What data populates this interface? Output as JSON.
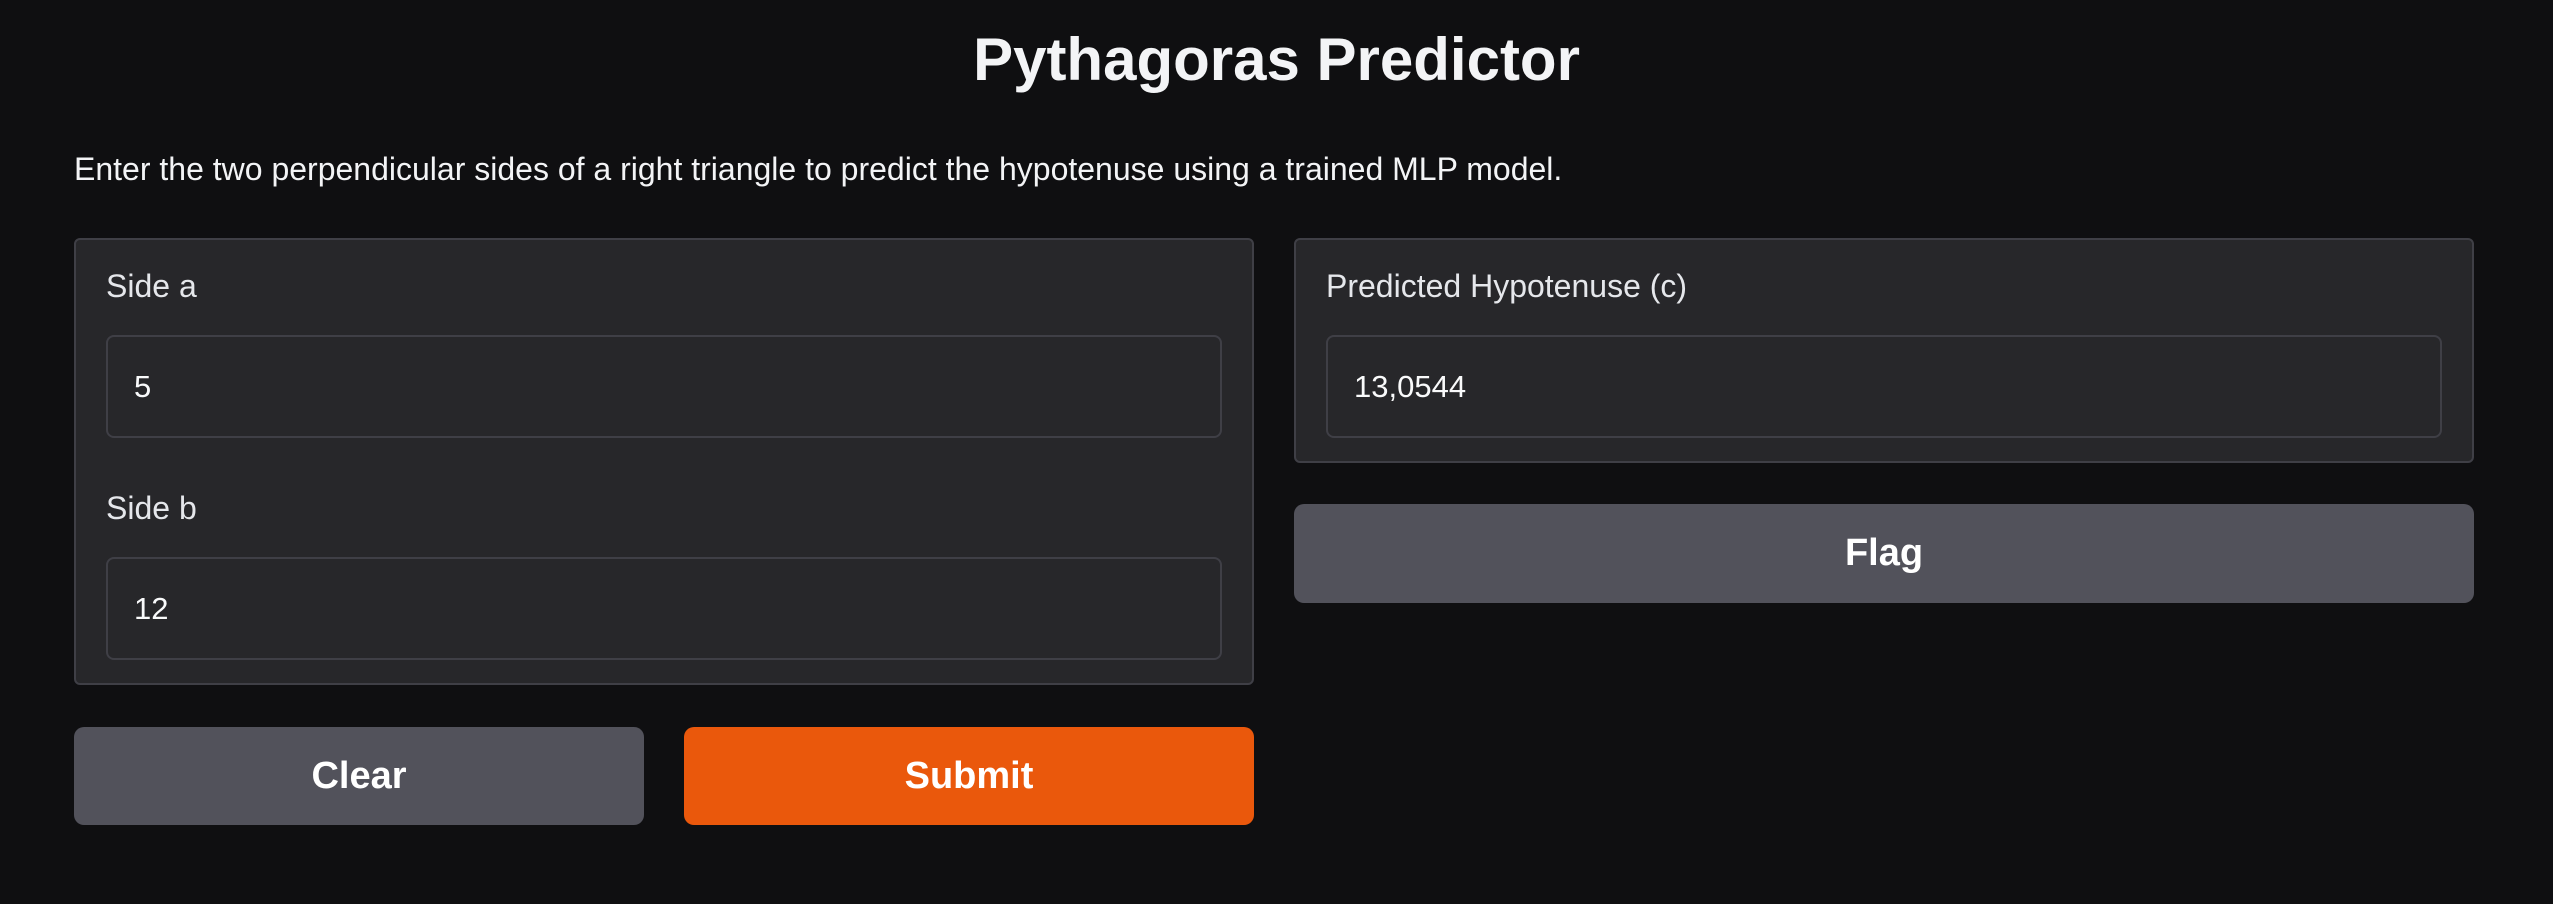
{
  "header": {
    "title": "Pythagoras Predictor",
    "description": "Enter the two perpendicular sides of a right triangle to predict the hypotenuse using a trained MLP model."
  },
  "inputs": {
    "side_a": {
      "label": "Side a",
      "value": "5"
    },
    "side_b": {
      "label": "Side b",
      "value": "12"
    }
  },
  "output": {
    "label": "Predicted Hypotenuse (c)",
    "value": "13,0544"
  },
  "buttons": {
    "clear": "Clear",
    "submit": "Submit",
    "flag": "Flag"
  },
  "colors": {
    "background": "#0f0f11",
    "panel": "#27272a",
    "border": "#3f3f46",
    "secondary_button": "#52525b",
    "primary_button": "#ea580c"
  }
}
